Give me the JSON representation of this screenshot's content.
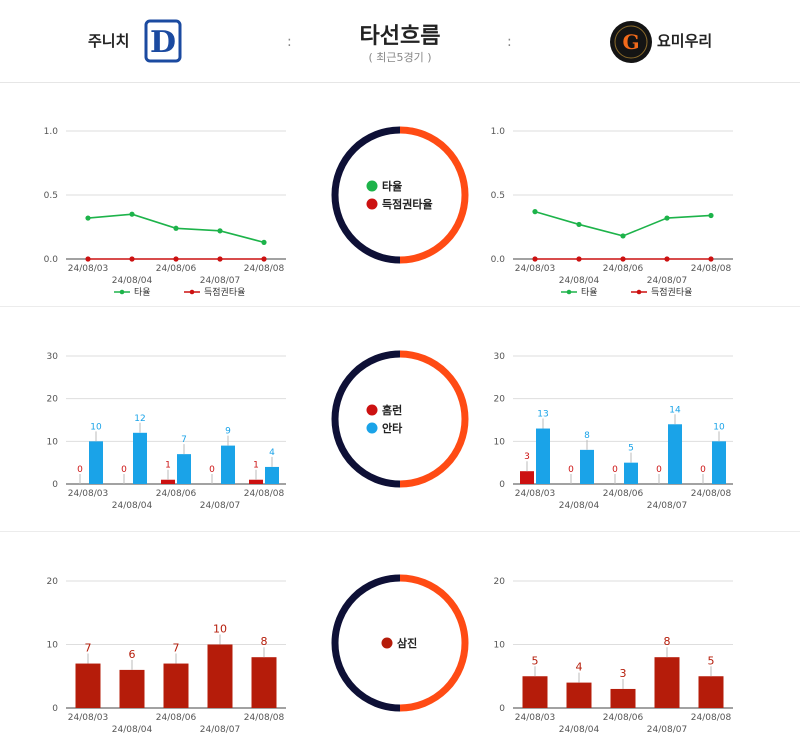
{
  "header": {
    "title": "타선흐름",
    "subtitle": "( 최근5경기 )",
    "dots": ":",
    "team_left": {
      "name": "주니치",
      "logo_text": "D",
      "color": "#1b4aa0"
    },
    "team_right": {
      "name": "요미우리",
      "logo_text": "G",
      "color": "#f26a1b"
    }
  },
  "colors": {
    "avg": "#1db34a",
    "risp": "#cc1111",
    "hr": "#cc1111",
    "hits": "#1aa3e8",
    "so": "#b51c0a",
    "ring_left": "#0e1036",
    "ring_right": "#ff4b14"
  },
  "rings": [
    {
      "legend": [
        {
          "label": "타율",
          "color": "#1db34a"
        },
        {
          "label": "득점권타율",
          "color": "#cc1111"
        }
      ]
    },
    {
      "legend": [
        {
          "label": "홈런",
          "color": "#cc1111"
        },
        {
          "label": "안타",
          "color": "#1aa3e8"
        }
      ]
    },
    {
      "legend": [
        {
          "label": "삼진",
          "color": "#b51c0a"
        }
      ]
    }
  ],
  "chart_data": [
    {
      "type": "line",
      "team": "주니치",
      "categories": [
        "24/08/03",
        "24/08/04",
        "24/08/06",
        "24/08/07",
        "24/08/08"
      ],
      "series": [
        {
          "name": "타율",
          "values": [
            0.32,
            0.35,
            0.24,
            0.22,
            0.13
          ],
          "color": "#1db34a"
        },
        {
          "name": "득점권타율",
          "values": [
            0.0,
            0.0,
            0.0,
            0.0,
            0.0
          ],
          "color": "#cc1111"
        }
      ],
      "yticks": [
        "0.0",
        "0.5",
        "1.0"
      ],
      "ylim": [
        0,
        1
      ]
    },
    {
      "type": "line",
      "team": "요미우리",
      "categories": [
        "24/08/03",
        "24/08/04",
        "24/08/06",
        "24/08/07",
        "24/08/08"
      ],
      "series": [
        {
          "name": "타율",
          "values": [
            0.37,
            0.27,
            0.18,
            0.32,
            0.34
          ],
          "color": "#1db34a"
        },
        {
          "name": "득점권타율",
          "values": [
            0.0,
            0.0,
            0.0,
            0.0,
            0.0
          ],
          "color": "#cc1111"
        }
      ],
      "yticks": [
        "0.0",
        "0.5",
        "1.0"
      ],
      "ylim": [
        0,
        1
      ]
    },
    {
      "type": "bar",
      "team": "주니치",
      "categories": [
        "24/08/03",
        "24/08/04",
        "24/08/06",
        "24/08/07",
        "24/08/08"
      ],
      "series": [
        {
          "name": "홈런",
          "values": [
            0,
            0,
            1,
            0,
            1
          ],
          "color": "#cc1111"
        },
        {
          "name": "안타",
          "values": [
            10,
            12,
            7,
            9,
            4
          ],
          "color": "#1aa3e8"
        }
      ],
      "yticks": [
        "0",
        "10",
        "20",
        "30"
      ],
      "ylim": [
        0,
        30
      ]
    },
    {
      "type": "bar",
      "team": "요미우리",
      "categories": [
        "24/08/03",
        "24/08/04",
        "24/08/06",
        "24/08/07",
        "24/08/08"
      ],
      "series": [
        {
          "name": "홈런",
          "values": [
            3,
            0,
            0,
            0,
            0
          ],
          "color": "#cc1111"
        },
        {
          "name": "안타",
          "values": [
            13,
            8,
            5,
            14,
            10
          ],
          "color": "#1aa3e8"
        }
      ],
      "yticks": [
        "0",
        "10",
        "20",
        "30"
      ],
      "ylim": [
        0,
        30
      ]
    },
    {
      "type": "bar",
      "team": "주니치",
      "categories": [
        "24/08/03",
        "24/08/04",
        "24/08/06",
        "24/08/07",
        "24/08/08"
      ],
      "series": [
        {
          "name": "삼진",
          "values": [
            7,
            6,
            7,
            10,
            8
          ],
          "color": "#b51c0a"
        }
      ],
      "yticks": [
        "0",
        "10",
        "20"
      ],
      "ylim": [
        0,
        20
      ]
    },
    {
      "type": "bar",
      "team": "요미우리",
      "categories": [
        "24/08/03",
        "24/08/04",
        "24/08/06",
        "24/08/07",
        "24/08/08"
      ],
      "series": [
        {
          "name": "삼진",
          "values": [
            5,
            4,
            3,
            8,
            5
          ],
          "color": "#b51c0a"
        }
      ],
      "yticks": [
        "0",
        "10",
        "20"
      ],
      "ylim": [
        0,
        20
      ]
    }
  ]
}
